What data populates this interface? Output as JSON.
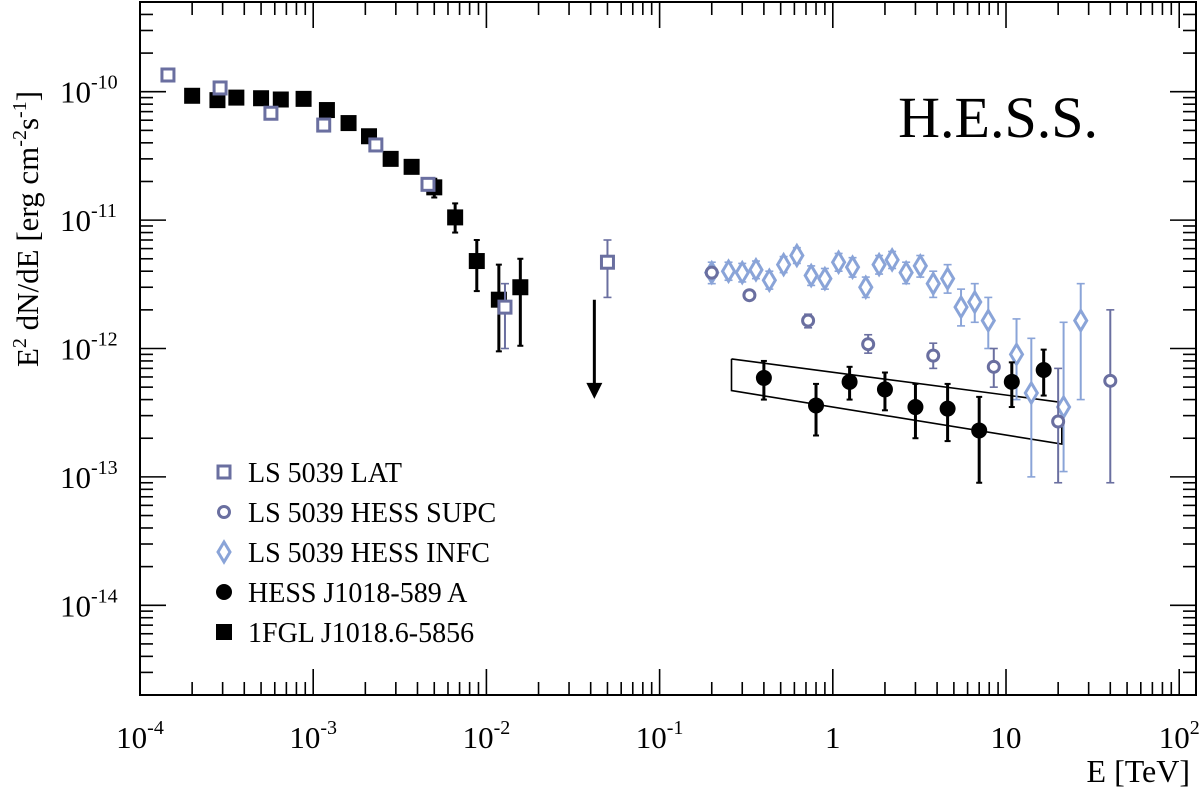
{
  "chart_data": {
    "type": "scatter",
    "title": "",
    "xlabel": "E [TeV]",
    "ylabel_parts": [
      "E",
      "2",
      " dN/dE [erg cm",
      "-2",
      "s",
      "-1",
      "]"
    ],
    "annotation": "H.E.S.S.",
    "x_scale": "log",
    "y_scale": "log",
    "xlim": [
      0.0001,
      125
    ],
    "ylim": [
      2e-15,
      5e-10
    ],
    "x_tick_labels": [
      {
        "value": 0.0001,
        "base": "10",
        "exp": "-4"
      },
      {
        "value": 0.001,
        "base": "10",
        "exp": "-3"
      },
      {
        "value": 0.01,
        "base": "10",
        "exp": "-2"
      },
      {
        "value": 0.1,
        "base": "10",
        "exp": "-1"
      },
      {
        "value": 1,
        "base": "1",
        "exp": ""
      },
      {
        "value": 10,
        "base": "10",
        "exp": ""
      },
      {
        "value": 100,
        "base": "10",
        "exp": "2"
      }
    ],
    "y_tick_labels": [
      {
        "value": 1e-10,
        "base": "10",
        "exp": "-10"
      },
      {
        "value": 1e-11,
        "base": "10",
        "exp": "-11"
      },
      {
        "value": 1e-12,
        "base": "10",
        "exp": "-12"
      },
      {
        "value": 1e-13,
        "base": "10",
        "exp": "-13"
      },
      {
        "value": 1e-14,
        "base": "10",
        "exp": "-14"
      }
    ],
    "grid": false,
    "legend_position": "bottom-left",
    "series": [
      {
        "name": "LS 5039 LAT",
        "marker": "open-square",
        "color": "#6a6fa0",
        "points": [
          {
            "x": 0.000145,
            "y": 1.35e-10
          },
          {
            "x": 0.00029,
            "y": 1.07e-10
          },
          {
            "x": 0.00057,
            "y": 6.8e-11
          },
          {
            "x": 0.00115,
            "y": 5.5e-11
          },
          {
            "x": 0.0023,
            "y": 3.85e-11
          },
          {
            "x": 0.0046,
            "y": 1.9e-11
          },
          {
            "x": 0.0128,
            "y": 2.1e-12,
            "ylo": 1e-12,
            "yhi": 3.2e-12
          },
          {
            "x": 0.05,
            "y": 4.7e-12,
            "ylo": 2.5e-12,
            "yhi": 7e-12
          }
        ]
      },
      {
        "name": "LS 5039 HESS SUPC",
        "marker": "open-circle",
        "color": "#6a6fa0",
        "points": [
          {
            "x": 0.2,
            "y": 3.9e-12
          },
          {
            "x": 0.33,
            "y": 2.6e-12
          },
          {
            "x": 0.72,
            "y": 1.65e-12,
            "ylo": 1.45e-12,
            "yhi": 1.85e-12
          },
          {
            "x": 1.6,
            "y": 1.08e-12,
            "ylo": 9.2e-13,
            "yhi": 1.28e-12
          },
          {
            "x": 3.8,
            "y": 8.8e-13,
            "ylo": 7e-13,
            "yhi": 1.1e-12
          },
          {
            "x": 8.5,
            "y": 7.2e-13,
            "ylo": 5e-13,
            "yhi": 1e-12
          },
          {
            "x": 20,
            "y": 2.7e-13,
            "ylo": 9e-14,
            "yhi": 7e-13
          },
          {
            "x": 40,
            "y": 5.6e-13,
            "ylo": 9e-14,
            "yhi": 2e-12
          }
        ]
      },
      {
        "name": "LS 5039 HESS INFC",
        "marker": "open-diamond",
        "color": "#8aa4d8",
        "points": [
          {
            "x": 0.2,
            "y": 3.9e-12,
            "ylo": 3.2e-12,
            "yhi": 4.7e-12
          },
          {
            "x": 0.25,
            "y": 4e-12,
            "ylo": 3.4e-12,
            "yhi": 4.7e-12
          },
          {
            "x": 0.3,
            "y": 3.9e-12,
            "ylo": 3.3e-12,
            "yhi": 4.6e-12
          },
          {
            "x": 0.36,
            "y": 4.1e-12,
            "ylo": 3.5e-12,
            "yhi": 4.8e-12
          },
          {
            "x": 0.43,
            "y": 3.4e-12,
            "ylo": 2.9e-12,
            "yhi": 4e-12
          },
          {
            "x": 0.52,
            "y": 4.5e-12,
            "ylo": 3.9e-12,
            "yhi": 5.2e-12
          },
          {
            "x": 0.62,
            "y": 5.3e-12,
            "ylo": 4.6e-12,
            "yhi": 6.1e-12
          },
          {
            "x": 0.75,
            "y": 3.7e-12,
            "ylo": 3.1e-12,
            "yhi": 4.4e-12
          },
          {
            "x": 0.9,
            "y": 3.5e-12,
            "ylo": 2.9e-12,
            "yhi": 4.2e-12
          },
          {
            "x": 1.08,
            "y": 4.7e-12,
            "ylo": 4e-12,
            "yhi": 5.5e-12
          },
          {
            "x": 1.3,
            "y": 4.3e-12,
            "ylo": 3.6e-12,
            "yhi": 5.1e-12
          },
          {
            "x": 1.55,
            "y": 3e-12,
            "ylo": 2.5e-12,
            "yhi": 3.6e-12
          },
          {
            "x": 1.85,
            "y": 4.5e-12,
            "ylo": 3.8e-12,
            "yhi": 5.3e-12
          },
          {
            "x": 2.2,
            "y": 4.9e-12,
            "ylo": 4.2e-12,
            "yhi": 5.7e-12
          },
          {
            "x": 2.65,
            "y": 3.9e-12,
            "ylo": 3.2e-12,
            "yhi": 4.7e-12
          },
          {
            "x": 3.2,
            "y": 4.4e-12,
            "ylo": 3.6e-12,
            "yhi": 5.3e-12
          },
          {
            "x": 3.8,
            "y": 3.2e-12,
            "ylo": 2.5e-12,
            "yhi": 4e-12
          },
          {
            "x": 4.6,
            "y": 3.5e-12,
            "ylo": 2.7e-12,
            "yhi": 4.5e-12
          },
          {
            "x": 5.5,
            "y": 2.1e-12,
            "ylo": 1.5e-12,
            "yhi": 2.9e-12
          },
          {
            "x": 6.6,
            "y": 2.3e-12,
            "ylo": 1.6e-12,
            "yhi": 3.2e-12
          },
          {
            "x": 7.9,
            "y": 1.65e-12,
            "ylo": 1e-12,
            "yhi": 2.5e-12
          },
          {
            "x": 11.5,
            "y": 9e-13,
            "ylo": 4e-13,
            "yhi": 1.7e-12
          },
          {
            "x": 14,
            "y": 4.5e-13,
            "ylo": 1e-13,
            "yhi": 1.2e-12
          },
          {
            "x": 21.5,
            "y": 3.5e-13,
            "ylo": 1.1e-13,
            "yhi": 1.6e-12
          },
          {
            "x": 27,
            "y": 1.65e-12,
            "ylo": 4e-13,
            "yhi": 3.2e-12
          }
        ]
      },
      {
        "name": "HESS J1018-589 A",
        "marker": "filled-circle",
        "color": "#000000",
        "points": [
          {
            "x": 0.4,
            "y": 5.9e-13,
            "ylo": 4e-13,
            "yhi": 8e-13
          },
          {
            "x": 0.8,
            "y": 3.6e-13,
            "ylo": 2.1e-13,
            "yhi": 5.3e-13
          },
          {
            "x": 1.25,
            "y": 5.5e-13,
            "ylo": 4e-13,
            "yhi": 7.2e-13
          },
          {
            "x": 2.0,
            "y": 4.8e-13,
            "ylo": 3.3e-13,
            "yhi": 6.5e-13
          },
          {
            "x": 3.0,
            "y": 3.5e-13,
            "ylo": 2e-13,
            "yhi": 5.3e-13
          },
          {
            "x": 4.6,
            "y": 3.4e-13,
            "ylo": 1.9e-13,
            "yhi": 5.3e-13
          },
          {
            "x": 7.0,
            "y": 2.3e-13,
            "ylo": 9e-14,
            "yhi": 4.2e-13
          },
          {
            "x": 10.8,
            "y": 5.5e-13,
            "ylo": 3.5e-13,
            "yhi": 7.8e-13
          },
          {
            "x": 16.5,
            "y": 6.8e-13,
            "ylo": 4.3e-13,
            "yhi": 9.8e-13
          }
        ]
      },
      {
        "name": "1FGL J1018.6-5856",
        "marker": "filled-square",
        "color": "#000000",
        "points": [
          {
            "x": 0.0002,
            "y": 9.3e-11
          },
          {
            "x": 0.00028,
            "y": 8.6e-11
          },
          {
            "x": 0.00036,
            "y": 9e-11
          },
          {
            "x": 0.0005,
            "y": 8.9e-11
          },
          {
            "x": 0.00065,
            "y": 8.7e-11
          },
          {
            "x": 0.00088,
            "y": 8.8e-11
          },
          {
            "x": 0.0012,
            "y": 7.2e-11
          },
          {
            "x": 0.0016,
            "y": 5.7e-11
          },
          {
            "x": 0.0021,
            "y": 4.5e-11
          },
          {
            "x": 0.0028,
            "y": 3e-11,
            "ylo": 2.75e-11,
            "yhi": 3.25e-11
          },
          {
            "x": 0.0037,
            "y": 2.6e-11,
            "ylo": 2.35e-11,
            "yhi": 2.9e-11
          },
          {
            "x": 0.005,
            "y": 1.8e-11,
            "ylo": 1.5e-11,
            "yhi": 2.1e-11
          },
          {
            "x": 0.0066,
            "y": 1.05e-11,
            "ylo": 8e-12,
            "yhi": 1.35e-11
          },
          {
            "x": 0.0088,
            "y": 4.8e-12,
            "ylo": 2.8e-12,
            "yhi": 7e-12
          },
          {
            "x": 0.0118,
            "y": 2.4e-12,
            "ylo": 9.5e-13,
            "yhi": 4.5e-12
          },
          {
            "x": 0.0157,
            "y": 3e-12,
            "ylo": 1.05e-12,
            "yhi": 5e-12
          }
        ]
      }
    ],
    "upper_limit": {
      "x": 0.042,
      "y_from": 2.4e-12,
      "y_to": 4.2e-13
    },
    "fit_bowtie": [
      {
        "x": 0.26,
        "y": 8.3e-13
      },
      {
        "x": 21,
        "y": 3.8e-13
      },
      {
        "x": 21,
        "y": 1.8e-13
      },
      {
        "x": 0.26,
        "y": 4.7e-13
      },
      {
        "x": 0.26,
        "y": 8.3e-13
      }
    ]
  }
}
